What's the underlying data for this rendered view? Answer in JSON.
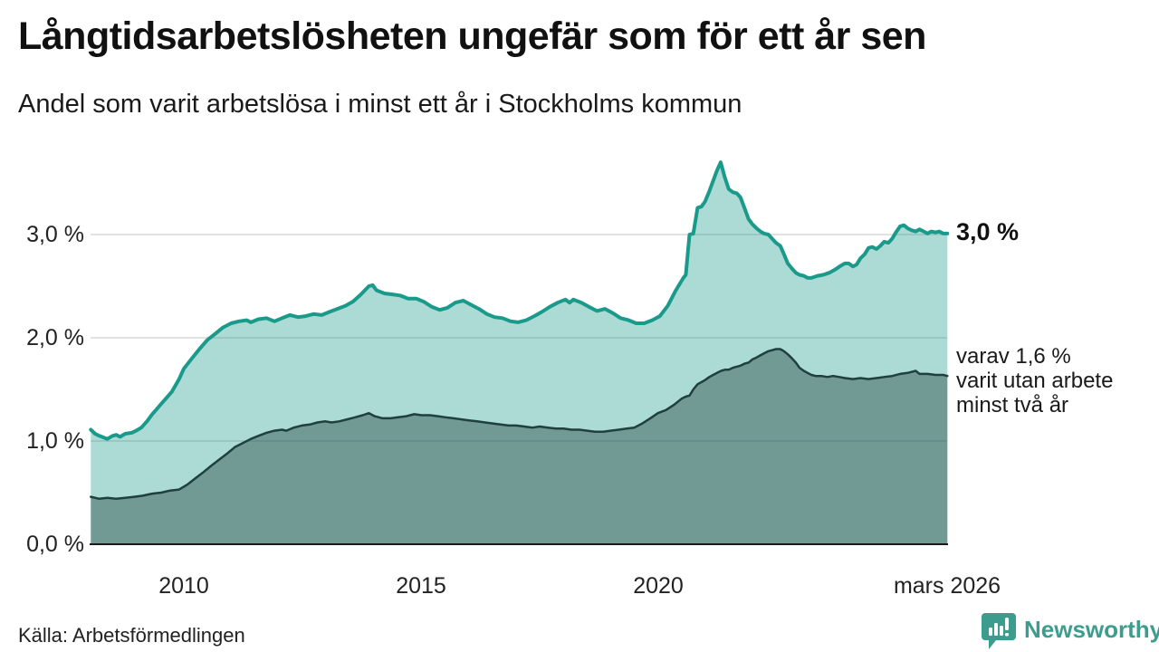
{
  "header": {
    "title": "Långtidsarbetslösheten ungefär som för ett år sen",
    "subtitle": "Andel som varit arbetslösa i minst ett år i Stockholms kommun"
  },
  "footer": {
    "source": "Källa: Arbetsförmedlingen",
    "brand_name": "Newsworthy"
  },
  "annotations": {
    "total_end_value": "3,0 %",
    "two_year_lines": [
      "varav 1,6 %",
      "varit utan arbete",
      "minst två år"
    ]
  },
  "colors": {
    "total_line": "#1a9a8a",
    "total_fill": "rgba(26,154,138,0.36)",
    "two_year_line": "#1f403d",
    "two_year_fill": "rgba(31,64,61,0.42)",
    "grid": "#d8d8d8",
    "axis": "#1a1a1a",
    "brand": "#3c9d8f"
  },
  "chart_data": {
    "type": "area",
    "title": "Långtidsarbetslösheten ungefär som för ett år sen",
    "subtitle": "Andel som varit arbetslösa i minst ett år i Stockholms kommun",
    "unit": "%",
    "xlim": [
      2008.03,
      2026.17
    ],
    "ylim": [
      0,
      3.87
    ],
    "grid": true,
    "x_ticks": [
      {
        "value": 2010,
        "label": "2010"
      },
      {
        "value": 2015,
        "label": "2015"
      },
      {
        "value": 2020,
        "label": "2020"
      },
      {
        "value": 2026.17,
        "label": "mars 2026"
      }
    ],
    "y_ticks": [
      {
        "value": 0,
        "label": "0,0 %"
      },
      {
        "value": 1,
        "label": "1,0 %"
      },
      {
        "value": 2,
        "label": "2,0 %"
      },
      {
        "value": 3,
        "label": "3,0 %"
      }
    ],
    "series": [
      {
        "name": "Arbetslösa i minst ett år",
        "end_value": 3.0,
        "points": [
          [
            2008.03,
            1.11
          ],
          [
            2008.12,
            1.07
          ],
          [
            2008.21,
            1.05
          ],
          [
            2008.38,
            1.02
          ],
          [
            2008.49,
            1.05
          ],
          [
            2008.57,
            1.06
          ],
          [
            2008.65,
            1.04
          ],
          [
            2008.76,
            1.07
          ],
          [
            2008.9,
            1.08
          ],
          [
            2008.99,
            1.1
          ],
          [
            2009.1,
            1.13
          ],
          [
            2009.22,
            1.19
          ],
          [
            2009.33,
            1.26
          ],
          [
            2009.41,
            1.3
          ],
          [
            2009.52,
            1.36
          ],
          [
            2009.6,
            1.4
          ],
          [
            2009.75,
            1.48
          ],
          [
            2009.9,
            1.6
          ],
          [
            2010.0,
            1.7
          ],
          [
            2010.17,
            1.8
          ],
          [
            2010.33,
            1.89
          ],
          [
            2010.5,
            1.98
          ],
          [
            2010.67,
            2.04
          ],
          [
            2010.83,
            2.1
          ],
          [
            2011.0,
            2.14
          ],
          [
            2011.17,
            2.16
          ],
          [
            2011.33,
            2.17
          ],
          [
            2011.42,
            2.15
          ],
          [
            2011.58,
            2.18
          ],
          [
            2011.75,
            2.19
          ],
          [
            2011.92,
            2.16
          ],
          [
            2012.08,
            2.19
          ],
          [
            2012.25,
            2.22
          ],
          [
            2012.42,
            2.2
          ],
          [
            2012.58,
            2.21
          ],
          [
            2012.75,
            2.23
          ],
          [
            2012.92,
            2.22
          ],
          [
            2013.08,
            2.25
          ],
          [
            2013.25,
            2.28
          ],
          [
            2013.42,
            2.31
          ],
          [
            2013.58,
            2.35
          ],
          [
            2013.75,
            2.42
          ],
          [
            2013.92,
            2.5
          ],
          [
            2014.0,
            2.51
          ],
          [
            2014.08,
            2.46
          ],
          [
            2014.25,
            2.43
          ],
          [
            2014.42,
            2.42
          ],
          [
            2014.58,
            2.41
          ],
          [
            2014.75,
            2.38
          ],
          [
            2014.92,
            2.38
          ],
          [
            2015.08,
            2.35
          ],
          [
            2015.25,
            2.3
          ],
          [
            2015.42,
            2.27
          ],
          [
            2015.58,
            2.29
          ],
          [
            2015.75,
            2.34
          ],
          [
            2015.92,
            2.36
          ],
          [
            2016.08,
            2.32
          ],
          [
            2016.25,
            2.28
          ],
          [
            2016.42,
            2.23
          ],
          [
            2016.58,
            2.2
          ],
          [
            2016.75,
            2.19
          ],
          [
            2016.92,
            2.16
          ],
          [
            2017.08,
            2.15
          ],
          [
            2017.25,
            2.17
          ],
          [
            2017.42,
            2.21
          ],
          [
            2017.58,
            2.25
          ],
          [
            2017.75,
            2.3
          ],
          [
            2017.92,
            2.34
          ],
          [
            2018.08,
            2.37
          ],
          [
            2018.17,
            2.34
          ],
          [
            2018.25,
            2.37
          ],
          [
            2018.42,
            2.34
          ],
          [
            2018.58,
            2.3
          ],
          [
            2018.75,
            2.26
          ],
          [
            2018.92,
            2.28
          ],
          [
            2019.08,
            2.24
          ],
          [
            2019.25,
            2.19
          ],
          [
            2019.42,
            2.17
          ],
          [
            2019.58,
            2.14
          ],
          [
            2019.75,
            2.14
          ],
          [
            2019.92,
            2.17
          ],
          [
            2020.08,
            2.21
          ],
          [
            2020.25,
            2.31
          ],
          [
            2020.42,
            2.46
          ],
          [
            2020.58,
            2.58
          ],
          [
            2020.63,
            2.61
          ],
          [
            2020.71,
            3.0
          ],
          [
            2020.79,
            3.01
          ],
          [
            2020.88,
            3.26
          ],
          [
            2020.96,
            3.27
          ],
          [
            2021.04,
            3.32
          ],
          [
            2021.13,
            3.42
          ],
          [
            2021.21,
            3.52
          ],
          [
            2021.29,
            3.62
          ],
          [
            2021.37,
            3.7
          ],
          [
            2021.46,
            3.55
          ],
          [
            2021.54,
            3.44
          ],
          [
            2021.63,
            3.41
          ],
          [
            2021.71,
            3.4
          ],
          [
            2021.79,
            3.36
          ],
          [
            2021.88,
            3.25
          ],
          [
            2021.96,
            3.15
          ],
          [
            2022.04,
            3.1
          ],
          [
            2022.13,
            3.06
          ],
          [
            2022.21,
            3.03
          ],
          [
            2022.29,
            3.01
          ],
          [
            2022.38,
            3.0
          ],
          [
            2022.46,
            2.96
          ],
          [
            2022.54,
            2.92
          ],
          [
            2022.63,
            2.89
          ],
          [
            2022.71,
            2.81
          ],
          [
            2022.79,
            2.72
          ],
          [
            2022.88,
            2.67
          ],
          [
            2022.96,
            2.63
          ],
          [
            2023.04,
            2.61
          ],
          [
            2023.13,
            2.6
          ],
          [
            2023.21,
            2.58
          ],
          [
            2023.29,
            2.58
          ],
          [
            2023.42,
            2.6
          ],
          [
            2023.54,
            2.61
          ],
          [
            2023.67,
            2.63
          ],
          [
            2023.79,
            2.66
          ],
          [
            2023.92,
            2.7
          ],
          [
            2024.0,
            2.72
          ],
          [
            2024.08,
            2.72
          ],
          [
            2024.17,
            2.69
          ],
          [
            2024.25,
            2.71
          ],
          [
            2024.33,
            2.77
          ],
          [
            2024.42,
            2.81
          ],
          [
            2024.5,
            2.87
          ],
          [
            2024.58,
            2.88
          ],
          [
            2024.67,
            2.86
          ],
          [
            2024.75,
            2.89
          ],
          [
            2024.83,
            2.93
          ],
          [
            2024.92,
            2.92
          ],
          [
            2025.0,
            2.96
          ],
          [
            2025.08,
            3.02
          ],
          [
            2025.17,
            3.08
          ],
          [
            2025.25,
            3.09
          ],
          [
            2025.33,
            3.06
          ],
          [
            2025.42,
            3.04
          ],
          [
            2025.5,
            3.03
          ],
          [
            2025.58,
            3.05
          ],
          [
            2025.67,
            3.03
          ],
          [
            2025.75,
            3.01
          ],
          [
            2025.83,
            3.03
          ],
          [
            2025.92,
            3.02
          ],
          [
            2026.0,
            3.03
          ],
          [
            2026.08,
            3.01
          ],
          [
            2026.17,
            3.01
          ]
        ]
      },
      {
        "name": "varav utan arbete minst två år",
        "end_value": 1.6,
        "points": [
          [
            2008.03,
            0.46
          ],
          [
            2008.21,
            0.44
          ],
          [
            2008.38,
            0.45
          ],
          [
            2008.57,
            0.44
          ],
          [
            2008.76,
            0.45
          ],
          [
            2008.95,
            0.46
          ],
          [
            2009.13,
            0.47
          ],
          [
            2009.33,
            0.49
          ],
          [
            2009.52,
            0.5
          ],
          [
            2009.71,
            0.52
          ],
          [
            2009.9,
            0.53
          ],
          [
            2010.08,
            0.58
          ],
          [
            2010.25,
            0.64
          ],
          [
            2010.42,
            0.7
          ],
          [
            2010.58,
            0.76
          ],
          [
            2010.75,
            0.82
          ],
          [
            2010.92,
            0.88
          ],
          [
            2011.08,
            0.94
          ],
          [
            2011.25,
            0.98
          ],
          [
            2011.42,
            1.02
          ],
          [
            2011.58,
            1.05
          ],
          [
            2011.75,
            1.08
          ],
          [
            2011.92,
            1.1
          ],
          [
            2012.08,
            1.11
          ],
          [
            2012.17,
            1.1
          ],
          [
            2012.33,
            1.13
          ],
          [
            2012.5,
            1.15
          ],
          [
            2012.67,
            1.16
          ],
          [
            2012.83,
            1.18
          ],
          [
            2013.0,
            1.19
          ],
          [
            2013.13,
            1.18
          ],
          [
            2013.29,
            1.19
          ],
          [
            2013.46,
            1.21
          ],
          [
            2013.63,
            1.23
          ],
          [
            2013.79,
            1.25
          ],
          [
            2013.92,
            1.27
          ],
          [
            2014.04,
            1.24
          ],
          [
            2014.21,
            1.22
          ],
          [
            2014.38,
            1.22
          ],
          [
            2014.54,
            1.23
          ],
          [
            2014.71,
            1.24
          ],
          [
            2014.88,
            1.26
          ],
          [
            2015.04,
            1.25
          ],
          [
            2015.21,
            1.25
          ],
          [
            2015.38,
            1.24
          ],
          [
            2015.54,
            1.23
          ],
          [
            2015.71,
            1.22
          ],
          [
            2015.88,
            1.21
          ],
          [
            2016.04,
            1.2
          ],
          [
            2016.21,
            1.19
          ],
          [
            2016.38,
            1.18
          ],
          [
            2016.54,
            1.17
          ],
          [
            2016.71,
            1.16
          ],
          [
            2016.88,
            1.15
          ],
          [
            2017.04,
            1.15
          ],
          [
            2017.21,
            1.14
          ],
          [
            2017.38,
            1.13
          ],
          [
            2017.54,
            1.14
          ],
          [
            2017.71,
            1.13
          ],
          [
            2017.88,
            1.12
          ],
          [
            2018.04,
            1.12
          ],
          [
            2018.21,
            1.11
          ],
          [
            2018.38,
            1.11
          ],
          [
            2018.54,
            1.1
          ],
          [
            2018.71,
            1.09
          ],
          [
            2018.88,
            1.09
          ],
          [
            2019.04,
            1.1
          ],
          [
            2019.21,
            1.11
          ],
          [
            2019.38,
            1.12
          ],
          [
            2019.54,
            1.13
          ],
          [
            2019.71,
            1.17
          ],
          [
            2019.88,
            1.22
          ],
          [
            2020.04,
            1.27
          ],
          [
            2020.21,
            1.3
          ],
          [
            2020.38,
            1.35
          ],
          [
            2020.54,
            1.41
          ],
          [
            2020.63,
            1.43
          ],
          [
            2020.71,
            1.44
          ],
          [
            2020.79,
            1.5
          ],
          [
            2020.88,
            1.55
          ],
          [
            2020.96,
            1.57
          ],
          [
            2021.04,
            1.59
          ],
          [
            2021.13,
            1.62
          ],
          [
            2021.21,
            1.64
          ],
          [
            2021.29,
            1.66
          ],
          [
            2021.38,
            1.68
          ],
          [
            2021.46,
            1.69
          ],
          [
            2021.54,
            1.69
          ],
          [
            2021.63,
            1.71
          ],
          [
            2021.71,
            1.72
          ],
          [
            2021.79,
            1.73
          ],
          [
            2021.88,
            1.75
          ],
          [
            2021.96,
            1.76
          ],
          [
            2022.04,
            1.79
          ],
          [
            2022.13,
            1.81
          ],
          [
            2022.21,
            1.83
          ],
          [
            2022.29,
            1.85
          ],
          [
            2022.38,
            1.87
          ],
          [
            2022.46,
            1.88
          ],
          [
            2022.54,
            1.89
          ],
          [
            2022.63,
            1.89
          ],
          [
            2022.71,
            1.87
          ],
          [
            2022.79,
            1.84
          ],
          [
            2022.88,
            1.8
          ],
          [
            2022.96,
            1.76
          ],
          [
            2023.04,
            1.71
          ],
          [
            2023.13,
            1.68
          ],
          [
            2023.21,
            1.66
          ],
          [
            2023.29,
            1.64
          ],
          [
            2023.38,
            1.63
          ],
          [
            2023.5,
            1.63
          ],
          [
            2023.63,
            1.62
          ],
          [
            2023.75,
            1.63
          ],
          [
            2023.88,
            1.62
          ],
          [
            2024.0,
            1.61
          ],
          [
            2024.17,
            1.6
          ],
          [
            2024.33,
            1.61
          ],
          [
            2024.5,
            1.6
          ],
          [
            2024.67,
            1.61
          ],
          [
            2024.83,
            1.62
          ],
          [
            2025.0,
            1.63
          ],
          [
            2025.17,
            1.65
          ],
          [
            2025.33,
            1.66
          ],
          [
            2025.5,
            1.68
          ],
          [
            2025.58,
            1.65
          ],
          [
            2025.75,
            1.65
          ],
          [
            2025.92,
            1.64
          ],
          [
            2026.08,
            1.64
          ],
          [
            2026.17,
            1.63
          ]
        ]
      }
    ]
  }
}
